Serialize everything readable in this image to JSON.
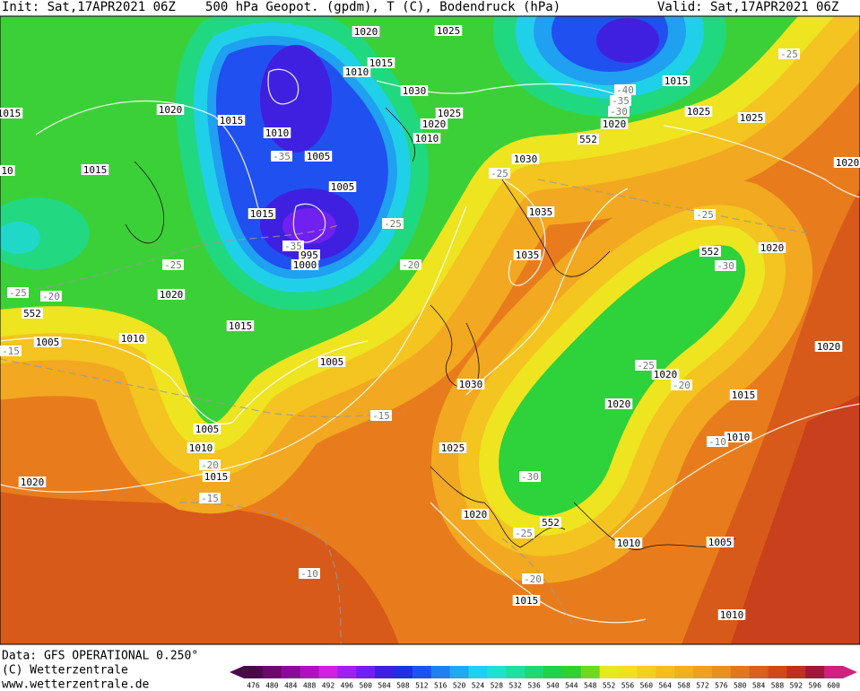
{
  "header": {
    "init": "Init: Sat,17APR2021 06Z",
    "product": "500 hPa Geopot. (gpdm), T (C), Bodendruck (hPa)",
    "valid": "Valid: Sat,17APR2021 06Z"
  },
  "map_labels": [
    "1020",
    "1025",
    "1015",
    "1010",
    "1030",
    "1015",
    "1020",
    "1015",
    "1010",
    "1020",
    "1025",
    "1010",
    "1015",
    "1005",
    "-35",
    "1005",
    "10",
    "1015",
    "-25",
    "-35",
    "995",
    "1000",
    "-20",
    "-25",
    "-25",
    "-20",
    "552",
    "1020",
    "1015",
    "1005",
    "1010",
    "-15",
    "1005",
    "1030",
    "-15",
    "1005",
    "1010",
    "-20",
    "1015",
    "1020",
    "-15",
    "1025",
    "1020",
    "-30",
    "552",
    "-25",
    "1010",
    "1005",
    "-20",
    "-10",
    "1015",
    "1010",
    "1015",
    "1025",
    "1025",
    "-40",
    "-35",
    "-30",
    "1020",
    "552",
    "-25",
    "1020",
    "1030",
    "-25",
    "1035",
    "-25",
    "1020",
    "552",
    "-30",
    "1035",
    "1020",
    "-25",
    "1020",
    "-20",
    "1015",
    "1020",
    "1010",
    "-10"
  ],
  "footer": {
    "data_source": "Data: GFS OPERATIONAL 0.250°",
    "copyright": "(C) Wetterzentrale",
    "website": "www.wetterzentrale.de"
  },
  "colorbar": {
    "values": [
      476,
      480,
      484,
      488,
      492,
      496,
      500,
      504,
      508,
      512,
      516,
      520,
      524,
      528,
      532,
      536,
      540,
      544,
      548,
      552,
      556,
      560,
      564,
      568,
      572,
      576,
      580,
      584,
      588,
      592,
      596,
      600
    ],
    "colors": [
      "#4a0a4a",
      "#6a0a6a",
      "#8a0a9a",
      "#b010c0",
      "#d020e0",
      "#a020f0",
      "#7020f0",
      "#4020e0",
      "#2030e0",
      "#2050f0",
      "#2080f0",
      "#20a8f0",
      "#20d0f0",
      "#20e0d0",
      "#20e0a0",
      "#20d870",
      "#20d050",
      "#30d030",
      "#70d820",
      "#e8e820",
      "#f0e020",
      "#f0d020",
      "#f0c020",
      "#f0b020",
      "#f0a020",
      "#e89020",
      "#e07820",
      "#d86020",
      "#d04818",
      "#c03020",
      "#a01838",
      "#d02080"
    ]
  }
}
